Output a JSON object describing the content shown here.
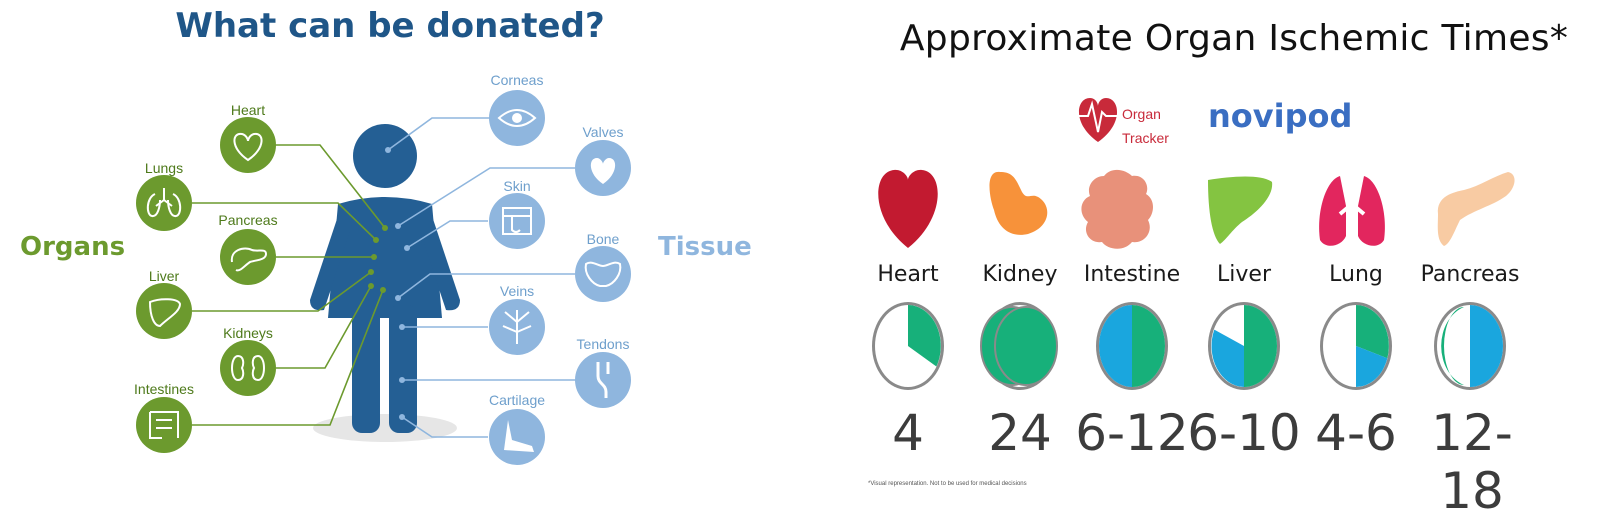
{
  "left_panel": {
    "title": "What can be donated?",
    "organs_label": "Organs",
    "tissue_label": "Tissue",
    "organs": [
      {
        "label": "Heart",
        "icon": "heart-icon"
      },
      {
        "label": "Lungs",
        "icon": "lungs-icon"
      },
      {
        "label": "Pancreas",
        "icon": "pancreas-icon"
      },
      {
        "label": "Liver",
        "icon": "liver-icon"
      },
      {
        "label": "Kidneys",
        "icon": "kidneys-icon"
      },
      {
        "label": "Intestines",
        "icon": "intestines-icon"
      }
    ],
    "tissues": [
      {
        "label": "Corneas",
        "icon": "eye-icon"
      },
      {
        "label": "Valves",
        "icon": "heart-valve-icon"
      },
      {
        "label": "Skin",
        "icon": "skin-icon"
      },
      {
        "label": "Bone",
        "icon": "pelvis-bone-icon"
      },
      {
        "label": "Veins",
        "icon": "veins-icon"
      },
      {
        "label": "Tendons",
        "icon": "knee-tendon-icon"
      },
      {
        "label": "Cartilage",
        "icon": "foot-cartilage-icon"
      }
    ],
    "colors": {
      "organ": "#6c9a2e",
      "organ_label": "#4e7a1b",
      "tissue": "#8fb6de",
      "tissue_label": "#6e9fcc",
      "figure": "#245f94",
      "title": "#1f5688"
    }
  },
  "right_panel": {
    "title": "Approximate Organ Ischemic Times*",
    "logos": {
      "organ_tracker": [
        "Organ",
        "Tracker"
      ],
      "novipod": "novipod"
    },
    "organs": [
      {
        "name": "Heart",
        "hours": "4",
        "color": "#c21a30",
        "icon": "heart-icon"
      },
      {
        "name": "Kidney",
        "hours": "24",
        "color": "#f7923a",
        "icon": "kidney-icon"
      },
      {
        "name": "Intestine",
        "hours": "6-12",
        "color": "#e8917a",
        "icon": "intestine-icon"
      },
      {
        "name": "Liver",
        "hours": "6-10",
        "color": "#84c441",
        "icon": "liver-icon"
      },
      {
        "name": "Lung",
        "hours": "4-6",
        "color": "#e2265e",
        "icon": "lung-icon"
      },
      {
        "name": "Pancreas",
        "hours": "12-18",
        "color": "#f8cba3",
        "icon": "pancreas-icon"
      }
    ],
    "footnote": "*Visual representation. Not to be used for medical decisions",
    "dial_colors": {
      "green": "#17b07a",
      "blue": "#1aa6de",
      "rim": "#8a8a8a"
    }
  }
}
